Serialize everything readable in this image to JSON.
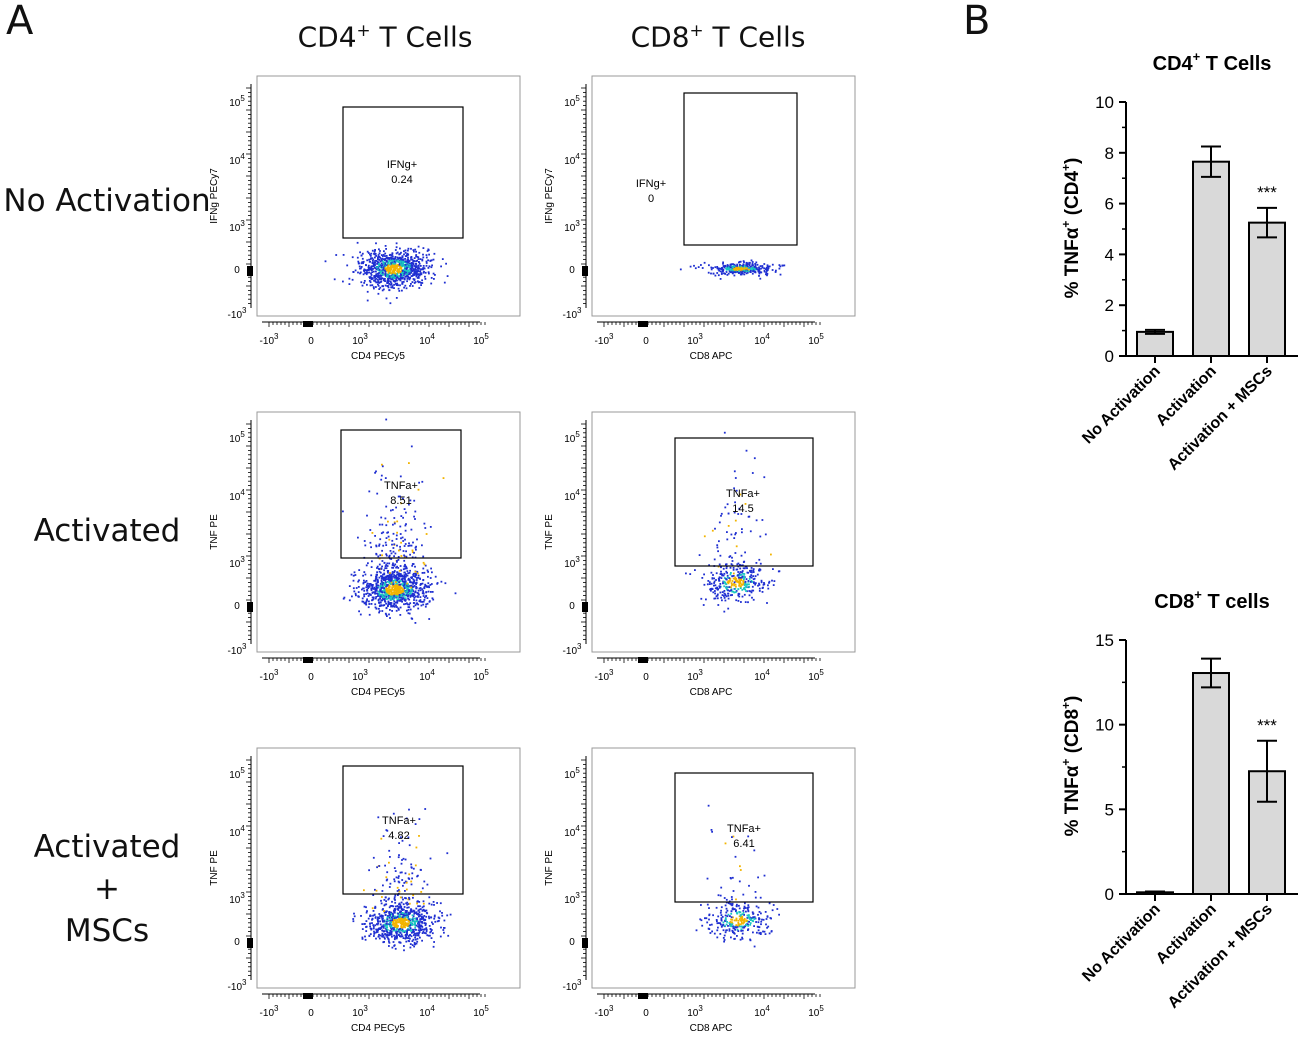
{
  "panel_a": {
    "letter": "A",
    "columns": [
      {
        "title": "CD4",
        "title_sup": "+",
        "title_rest": " T Cells"
      },
      {
        "title": "CD8",
        "title_sup": "+",
        "title_rest": " T Cells"
      }
    ],
    "rows": [
      {
        "label_lines": [
          "No Activation"
        ]
      },
      {
        "label_lines": [
          "Activated"
        ]
      },
      {
        "label_lines": [
          "Activated",
          "+",
          "MSCs"
        ]
      }
    ],
    "x_ticks": [
      "-10",
      "0",
      "10",
      "10",
      "10"
    ],
    "x_tick_exps": [
      "3",
      "",
      "3",
      "4",
      "5"
    ],
    "y_ticks": [
      "10",
      "10",
      "10",
      "0",
      "-10"
    ],
    "y_tick_exps": [
      "5",
      "4",
      "3",
      "",
      "3"
    ]
  },
  "chart_data": [
    {
      "type": "scatter",
      "panel": "A",
      "row": "No Activation",
      "column": "CD4+ T Cells",
      "xlabel": "CD4 PECy5",
      "ylabel": "IFNg PECy7",
      "gate_label": "IFNg+",
      "gate_value": "0.24"
    },
    {
      "type": "scatter",
      "panel": "A",
      "row": "No Activation",
      "column": "CD8+ T Cells",
      "xlabel": "CD8 APC",
      "ylabel": "IFNg PECy7",
      "gate_label": "IFNg+",
      "gate_value": "0"
    },
    {
      "type": "scatter",
      "panel": "A",
      "row": "Activated",
      "column": "CD4+ T Cells",
      "xlabel": "CD4 PECy5",
      "ylabel": "TNF PE",
      "gate_label": "TNFa+",
      "gate_value": "8.51"
    },
    {
      "type": "scatter",
      "panel": "A",
      "row": "Activated",
      "column": "CD8+ T Cells",
      "xlabel": "CD8 APC",
      "ylabel": "TNF PE",
      "gate_label": "TNFa+",
      "gate_value": "14.5"
    },
    {
      "type": "scatter",
      "panel": "A",
      "row": "Activated + MSCs",
      "column": "CD4+ T Cells",
      "xlabel": "CD4 PECy5",
      "ylabel": "TNF PE",
      "gate_label": "TNFa+",
      "gate_value": "4.82"
    },
    {
      "type": "scatter",
      "panel": "A",
      "row": "Activated + MSCs",
      "column": "CD8+ T Cells",
      "xlabel": "CD8 APC",
      "ylabel": "TNF PE",
      "gate_label": "TNFa+",
      "gate_value": "6.41"
    },
    {
      "type": "bar",
      "panel": "B",
      "title": "CD4",
      "title_sup": "+",
      "title_rest": "  T Cells",
      "ylabel": "% TNFα+ (CD4+)",
      "categories": [
        "No Activation",
        "Activation",
        "Activation + MSCs"
      ],
      "values": [
        0.95,
        7.65,
        5.25
      ],
      "errors": [
        0.08,
        0.6,
        0.58
      ],
      "annotations": [
        "",
        "",
        "***"
      ],
      "ylim": [
        0,
        10
      ],
      "yticks": [
        0,
        2,
        4,
        6,
        8,
        10
      ],
      "ytick_labels": [
        "0",
        "2",
        "4",
        "6",
        "8",
        "10"
      ]
    },
    {
      "type": "bar",
      "panel": "B",
      "title": "CD8",
      "title_sup": "+",
      "title_rest": " T cells",
      "ylabel": "% TNFα+ (CD8+)",
      "categories": [
        "No Activation",
        "Activation",
        "Activation + MSCs"
      ],
      "values": [
        0.1,
        13.05,
        7.25
      ],
      "errors": [
        0.05,
        0.85,
        1.8
      ],
      "annotations": [
        "",
        "",
        "***"
      ],
      "ylim": [
        0,
        15
      ],
      "yticks": [
        0,
        5,
        10,
        15
      ],
      "ytick_labels": [
        "0",
        "5",
        "10",
        "15"
      ]
    }
  ],
  "panel_b": {
    "letter": "B",
    "ylabel_parts_cd4": {
      "pct": "% TNFα",
      "sup1": "+",
      "mid": " (CD4",
      "sup2": "+",
      "end": ")"
    },
    "ylabel_parts_cd8": {
      "pct": "% TNFα",
      "sup1": "+",
      "mid": " (CD8",
      "sup2": "+",
      "end": ")"
    }
  },
  "colors": {
    "bar_fill": "#d9d9d9",
    "bar_stroke": "#000000",
    "dot_low": "#1f2fd1",
    "dot_mid": "#19c7c0",
    "dot_high": "#f2b400"
  }
}
